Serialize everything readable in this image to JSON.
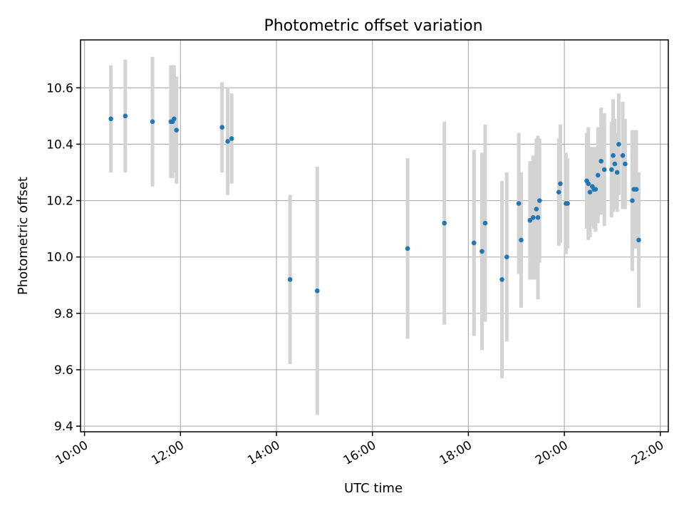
{
  "chart_data": {
    "type": "scatter",
    "title": "Photometric offset variation",
    "xlabel": "UTC time",
    "ylabel": "Photometric offset",
    "xlim": [
      "10:00",
      "22:00"
    ],
    "ylim": [
      9.38,
      10.77
    ],
    "x_ticks": [
      "10:00",
      "12:00",
      "14:00",
      "16:00",
      "18:00",
      "20:00",
      "22:00"
    ],
    "y_ticks": [
      "9.4",
      "9.6",
      "9.8",
      "10.0",
      "10.2",
      "10.4",
      "10.6"
    ],
    "grid": true,
    "point_color": "#1f77b4",
    "errorbar_color": "#d3d3d3",
    "series": [
      {
        "x": [
          "10:33",
          "10:51",
          "11:25",
          "11:48",
          "11:50",
          "11:52",
          "11:55",
          "12:52",
          "12:59",
          "13:04",
          "14:17",
          "14:51",
          "16:44",
          "17:30",
          "18:07",
          "18:17",
          "18:21",
          "18:42",
          "18:48",
          "19:03",
          "19:06",
          "19:17",
          "19:21",
          "19:25",
          "19:27",
          "19:29",
          "19:53",
          "19:55",
          "20:02",
          "20:04",
          "20:28",
          "20:30",
          "20:32",
          "20:35",
          "20:37",
          "20:39",
          "20:42",
          "20:46",
          "20:50",
          "20:59",
          "21:01",
          "21:03",
          "21:06",
          "21:08",
          "21:13",
          "21:16",
          "21:25",
          "21:27",
          "21:30",
          "21:33"
        ],
        "y": [
          10.49,
          10.5,
          10.48,
          10.48,
          10.48,
          10.49,
          10.45,
          10.46,
          10.41,
          10.42,
          9.92,
          9.88,
          10.03,
          10.12,
          10.05,
          10.02,
          10.12,
          9.92,
          10.0,
          10.19,
          10.06,
          10.13,
          10.14,
          10.17,
          10.14,
          10.2,
          10.23,
          10.26,
          10.19,
          10.19,
          10.27,
          10.26,
          10.23,
          10.25,
          10.24,
          10.24,
          10.29,
          10.34,
          10.31,
          10.31,
          10.36,
          10.33,
          10.3,
          10.4,
          10.36,
          10.33,
          10.2,
          10.24,
          10.24,
          10.06
        ],
        "yerr": [
          0.19,
          0.2,
          0.23,
          0.2,
          0.2,
          0.19,
          0.19,
          0.16,
          0.19,
          0.16,
          0.3,
          0.44,
          0.32,
          0.36,
          0.33,
          0.35,
          0.35,
          0.35,
          0.3,
          0.25,
          0.24,
          0.21,
          0.22,
          0.25,
          0.29,
          0.22,
          0.19,
          0.21,
          0.18,
          0.16,
          0.17,
          0.2,
          0.16,
          0.14,
          0.14,
          0.15,
          0.17,
          0.19,
          0.2,
          0.17,
          0.2,
          0.16,
          0.14,
          0.18,
          0.19,
          0.16,
          0.25,
          0.21,
          0.21,
          0.24
        ]
      }
    ]
  }
}
